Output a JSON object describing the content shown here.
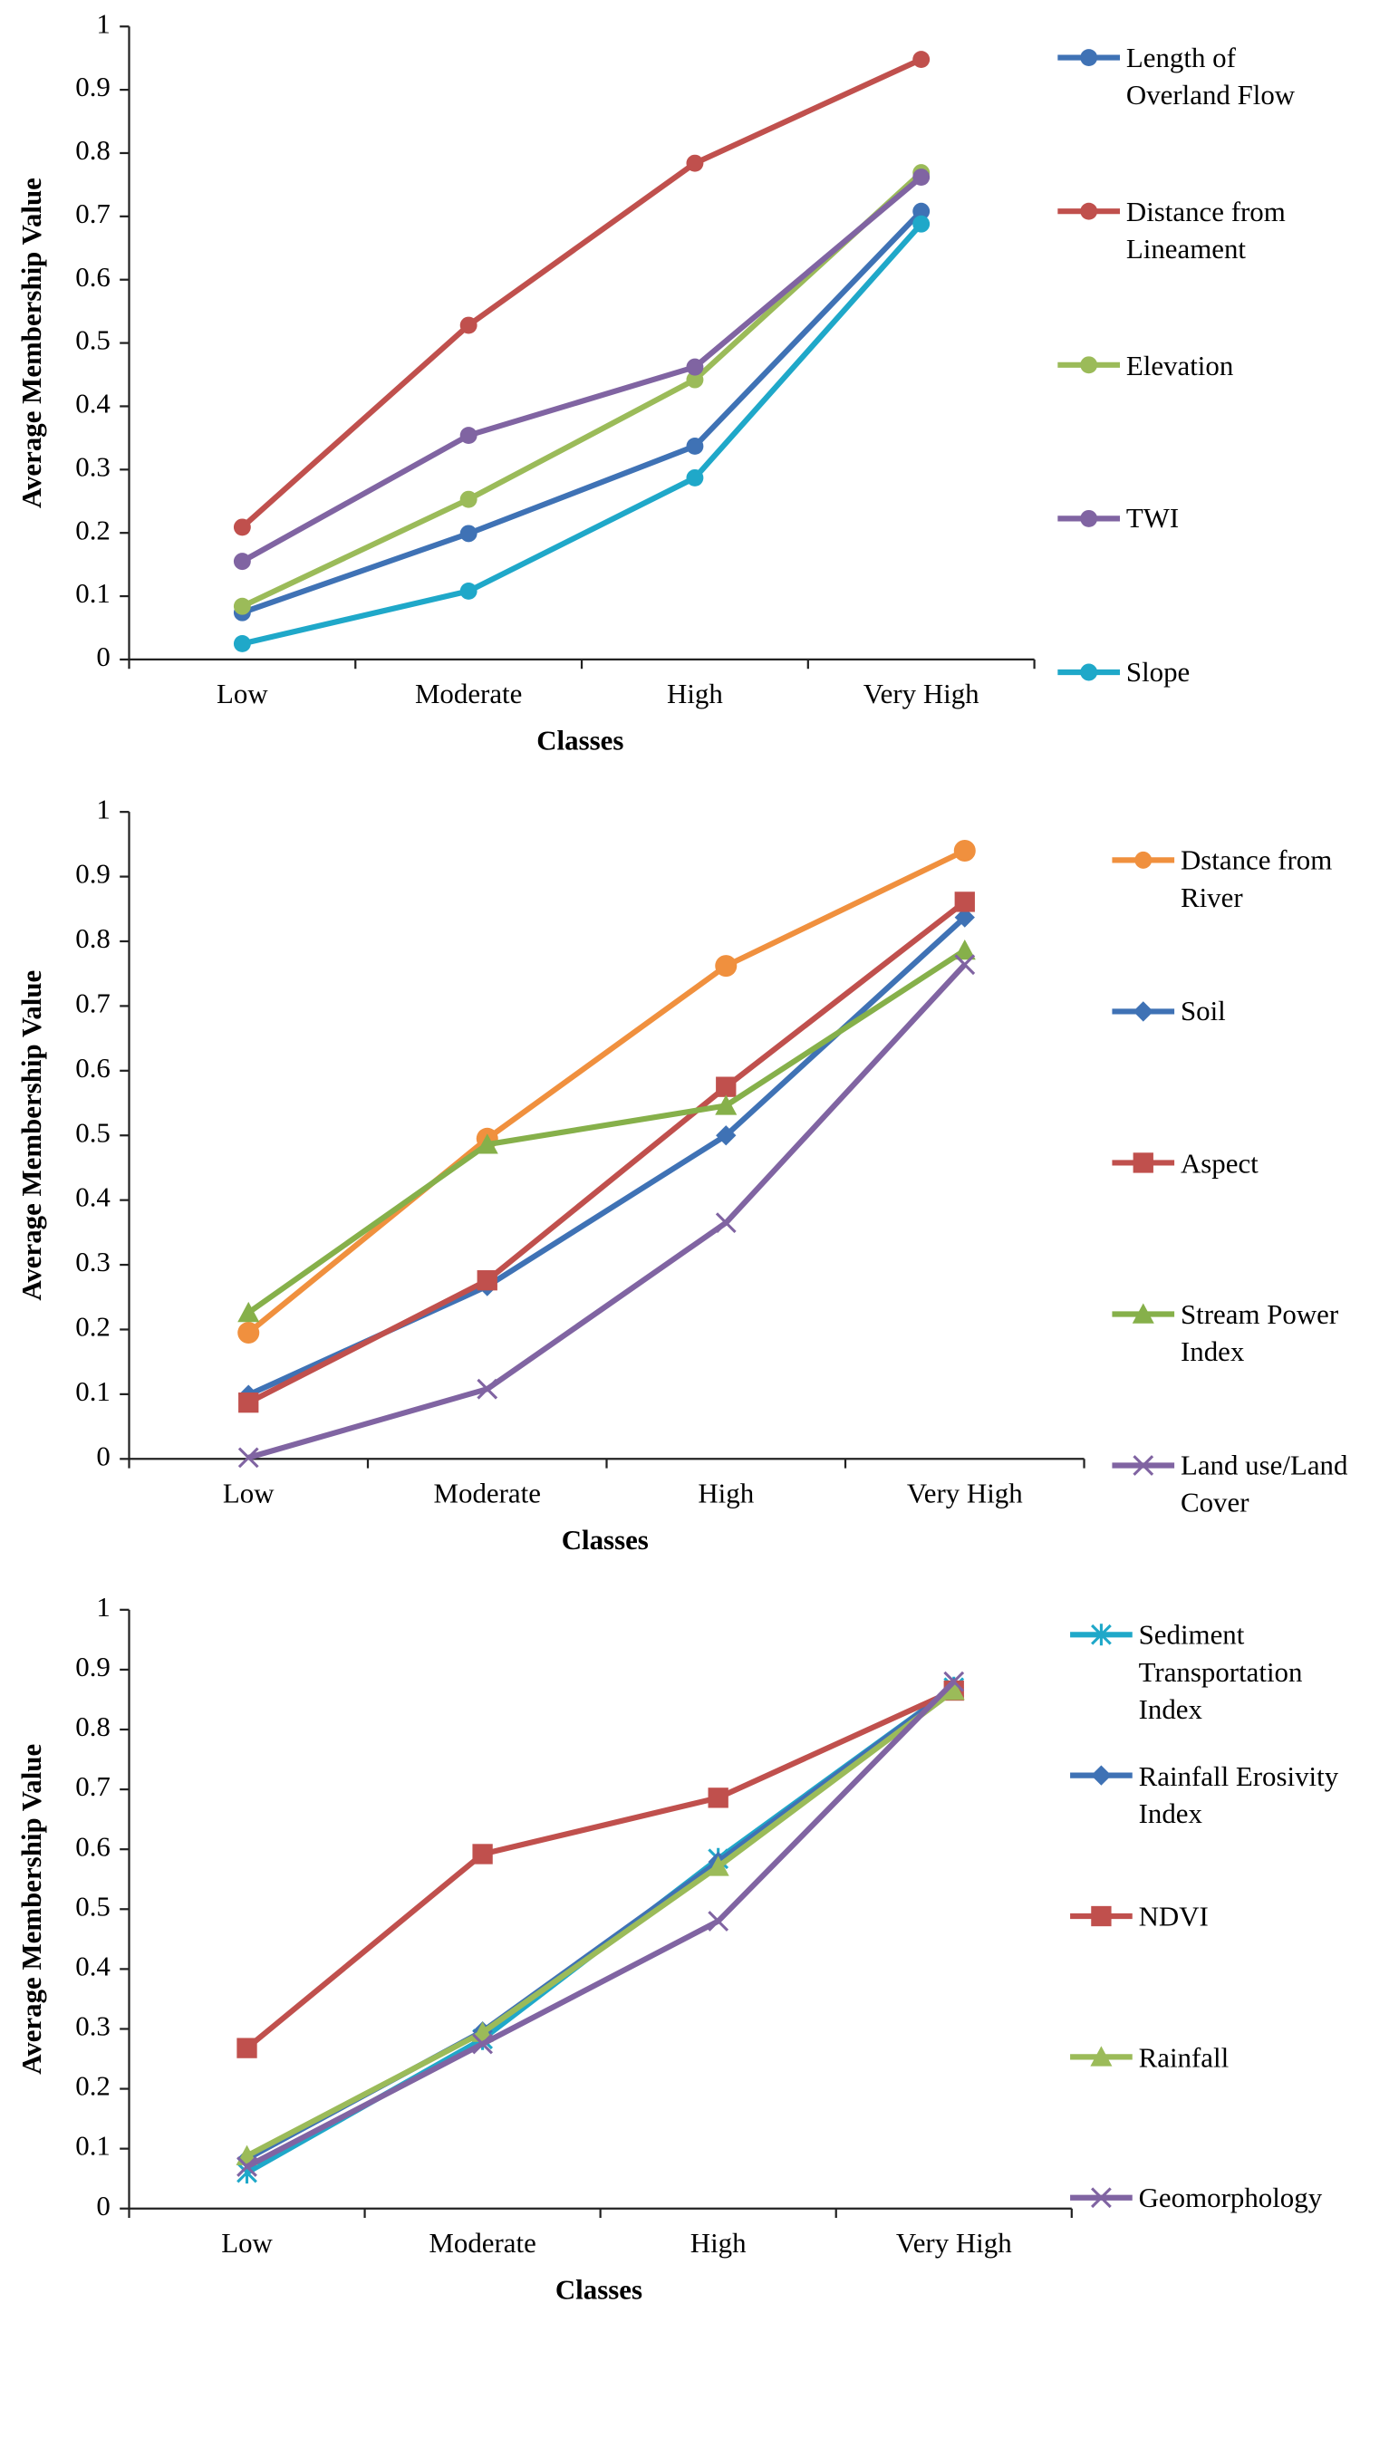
{
  "chart_data": [
    {
      "type": "line",
      "x_label": "Classes",
      "y_label": "Average Membership Value",
      "categories": [
        "Low",
        "Moderate",
        "High",
        "Very High"
      ],
      "ylim": [
        0,
        1
      ],
      "yticks": [
        0,
        0.1,
        0.2,
        0.3,
        0.4,
        0.5,
        0.6,
        0.7,
        0.8,
        0.9,
        1
      ],
      "legend": "right",
      "series": [
        {
          "name": "Length of Overland Flow",
          "color": "#3f72b5",
          "marker": "circle",
          "values": [
            0.074,
            0.199,
            0.337,
            0.708
          ]
        },
        {
          "name": "Distance from Lineament",
          "color": "#c0504d",
          "marker": "circle",
          "values": [
            0.209,
            0.528,
            0.784,
            0.948
          ]
        },
        {
          "name": "Elevation",
          "color": "#9bbb59",
          "marker": "circle",
          "values": [
            0.084,
            0.253,
            0.442,
            0.769
          ]
        },
        {
          "name": "TWI",
          "color": "#8064a2",
          "marker": "circle",
          "values": [
            0.155,
            0.354,
            0.462,
            0.762
          ]
        },
        {
          "name": "Slope",
          "color": "#1fa8c9",
          "marker": "circle",
          "values": [
            0.025,
            0.108,
            0.287,
            0.688
          ]
        }
      ]
    },
    {
      "type": "line",
      "x_label": "Classes",
      "y_label": "Average Membership Value",
      "categories": [
        "Low",
        "Moderate",
        "High",
        "Very High"
      ],
      "ylim": [
        0,
        1
      ],
      "yticks": [
        0,
        0.1,
        0.2,
        0.3,
        0.4,
        0.5,
        0.6,
        0.7,
        0.8,
        0.9,
        1
      ],
      "legend": "right",
      "series": [
        {
          "name": "Dstance from River",
          "color": "#f0903e",
          "marker": "circle",
          "values": [
            0.195,
            0.495,
            0.762,
            0.94
          ]
        },
        {
          "name": "Soil",
          "color": "#3f72b5",
          "marker": "diamond",
          "values": [
            0.099,
            0.267,
            0.5,
            0.837
          ]
        },
        {
          "name": "Aspect",
          "color": "#c0504d",
          "marker": "square",
          "values": [
            0.087,
            0.276,
            0.575,
            0.861
          ]
        },
        {
          "name": "Stream Power Index",
          "color": "#86b04a",
          "marker": "triangle",
          "values": [
            0.226,
            0.486,
            0.546,
            0.786
          ]
        },
        {
          "name": "Land use/Land Cover",
          "color": "#8064a2",
          "marker": "x",
          "values": [
            0.002,
            0.108,
            0.365,
            0.764
          ]
        }
      ]
    },
    {
      "type": "line",
      "x_label": "Classes",
      "y_label": "Average Membership Value",
      "categories": [
        "Low",
        "Moderate",
        "High",
        "Very High"
      ],
      "ylim": [
        0,
        1
      ],
      "yticks": [
        0,
        0.1,
        0.2,
        0.3,
        0.4,
        0.5,
        0.6,
        0.7,
        0.8,
        0.9,
        1
      ],
      "legend": "right",
      "series": [
        {
          "name": "Sediment Transportation Index",
          "color": "#1fa8c9",
          "marker": "asterisk",
          "values": [
            0.06,
            0.283,
            0.584,
            0.87
          ]
        },
        {
          "name": "Rainfall Erosivity Index",
          "color": "#3f72b5",
          "marker": "diamond",
          "values": [
            0.083,
            0.296,
            0.579,
            0.87
          ]
        },
        {
          "name": "NDVI",
          "color": "#c0504d",
          "marker": "square",
          "values": [
            0.268,
            0.592,
            0.686,
            0.865
          ]
        },
        {
          "name": "Rainfall",
          "color": "#9bbb59",
          "marker": "triangle",
          "values": [
            0.088,
            0.294,
            0.571,
            0.865
          ]
        },
        {
          "name": "Geomorphology",
          "color": "#8064a2",
          "marker": "x",
          "values": [
            0.07,
            0.275,
            0.48,
            0.88
          ]
        }
      ]
    }
  ]
}
